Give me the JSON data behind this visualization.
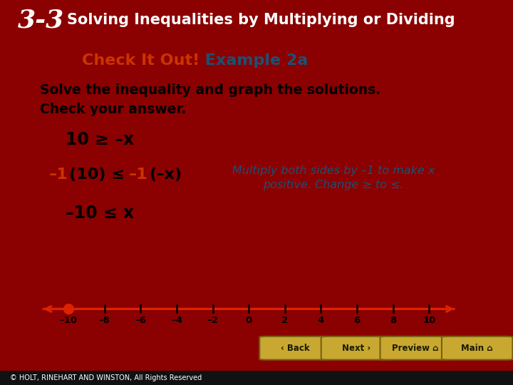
{
  "title_num": "3-3",
  "title_text": "Solving Inequalities by Multiplying or Dividing",
  "header_bg": "#6B0000",
  "content_bg": "#FFFFFF",
  "outer_bg": "#8B0000",
  "footer_bg": "#111111",
  "check_it_out_color": "#CC3300",
  "example_color": "#1A5276",
  "check_it_out_text": "Check It Out!",
  "example_text": " Example 2a",
  "body_text_1": "Solve the inequality and graph the solutions.",
  "body_text_2": "Check your answer.",
  "line1": "10 ≥ –x",
  "line2_red1": "–1",
  "line2_b1": "(10) ≤ ",
  "line2_red2": "–1",
  "line2_b2": "(–x)",
  "note_line1": "Multiply both sides by –1 to make x",
  "note_line2": "positive. Change ≥ to ≤.",
  "line3": "–10 ≤ x",
  "number_line_min": -10,
  "number_line_max": 10,
  "number_line_step": 2,
  "closed_dot_at": -10,
  "number_line_color": "#DD2200",
  "dot_color": "#DD2200",
  "footer_text": "© HOLT, RINEHART AND WINSTON, All Rights Reserved",
  "button_labels": [
    "‹ Back",
    "Next ›",
    "Preview ⌂",
    "Main ⌂"
  ],
  "button_bg": "#C8A830",
  "button_edge": "#7A6010",
  "note_color": "#1A5276",
  "red_color": "#CC3300"
}
